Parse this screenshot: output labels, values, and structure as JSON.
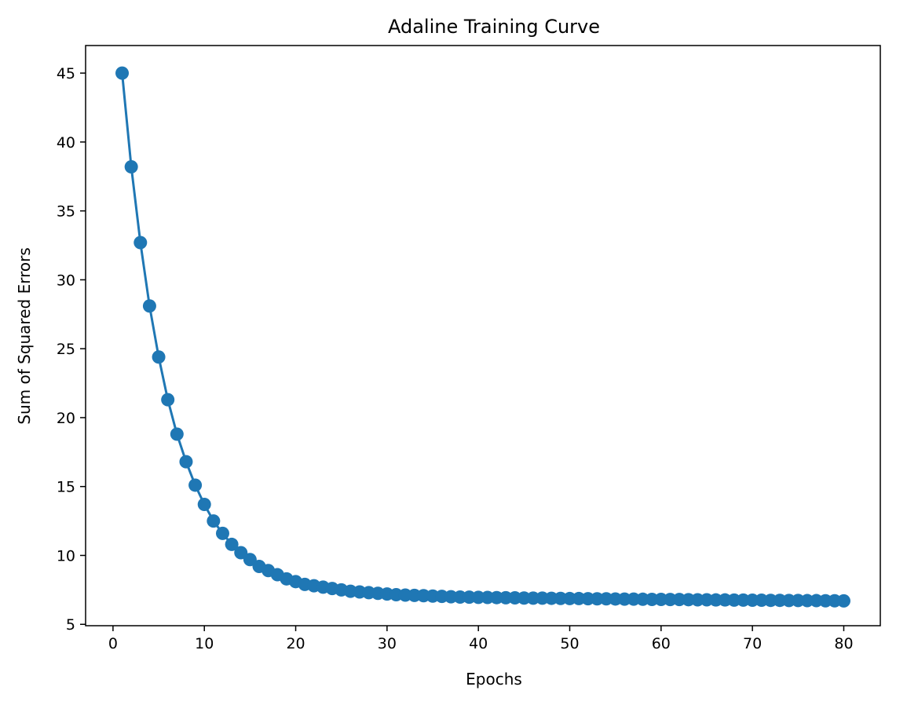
{
  "chart_data": {
    "type": "line",
    "title": "Adaline Training Curve",
    "xlabel": "Epochs",
    "ylabel": "Sum of Squared Errors",
    "xlim": [
      -3.0,
      84.0
    ],
    "ylim": [
      4.9,
      47.0
    ],
    "xticks": [
      0,
      10,
      20,
      30,
      40,
      50,
      60,
      70,
      80
    ],
    "yticks": [
      5,
      10,
      15,
      20,
      25,
      30,
      35,
      40,
      45
    ],
    "grid": false,
    "marker": "circle",
    "color": "#1f77b4",
    "series": [
      {
        "x": [
          1,
          2,
          3,
          4,
          5,
          6,
          7,
          8,
          9,
          10,
          11,
          12,
          13,
          14,
          15,
          16,
          17,
          18,
          19,
          20,
          21,
          22,
          23,
          24,
          25,
          26,
          27,
          28,
          29,
          30,
          31,
          32,
          33,
          34,
          35,
          36,
          37,
          38,
          39,
          40,
          41,
          42,
          43,
          44,
          45,
          46,
          47,
          48,
          49,
          50,
          51,
          52,
          53,
          54,
          55,
          56,
          57,
          58,
          59,
          60,
          61,
          62,
          63,
          64,
          65,
          66,
          67,
          68,
          69,
          70,
          71,
          72,
          73,
          74,
          75,
          76,
          77,
          78,
          79,
          80
        ],
        "values": [
          45.0,
          38.2,
          32.7,
          28.1,
          24.4,
          21.3,
          18.8,
          16.8,
          15.1,
          13.7,
          12.5,
          11.6,
          10.8,
          10.2,
          9.7,
          9.2,
          8.9,
          8.6,
          8.3,
          8.1,
          7.9,
          7.8,
          7.7,
          7.6,
          7.5,
          7.4,
          7.35,
          7.3,
          7.25,
          7.2,
          7.15,
          7.12,
          7.1,
          7.08,
          7.05,
          7.03,
          7.0,
          6.98,
          6.97,
          6.96,
          6.95,
          6.94,
          6.93,
          6.92,
          6.91,
          6.9,
          6.9,
          6.89,
          6.88,
          6.87,
          6.87,
          6.86,
          6.85,
          6.85,
          6.84,
          6.83,
          6.83,
          6.82,
          6.81,
          6.81,
          6.8,
          6.8,
          6.79,
          6.78,
          6.78,
          6.77,
          6.77,
          6.76,
          6.76,
          6.75,
          6.75,
          6.74,
          6.74,
          6.73,
          6.73,
          6.72,
          6.72,
          6.71,
          6.71,
          6.7
        ]
      }
    ]
  }
}
